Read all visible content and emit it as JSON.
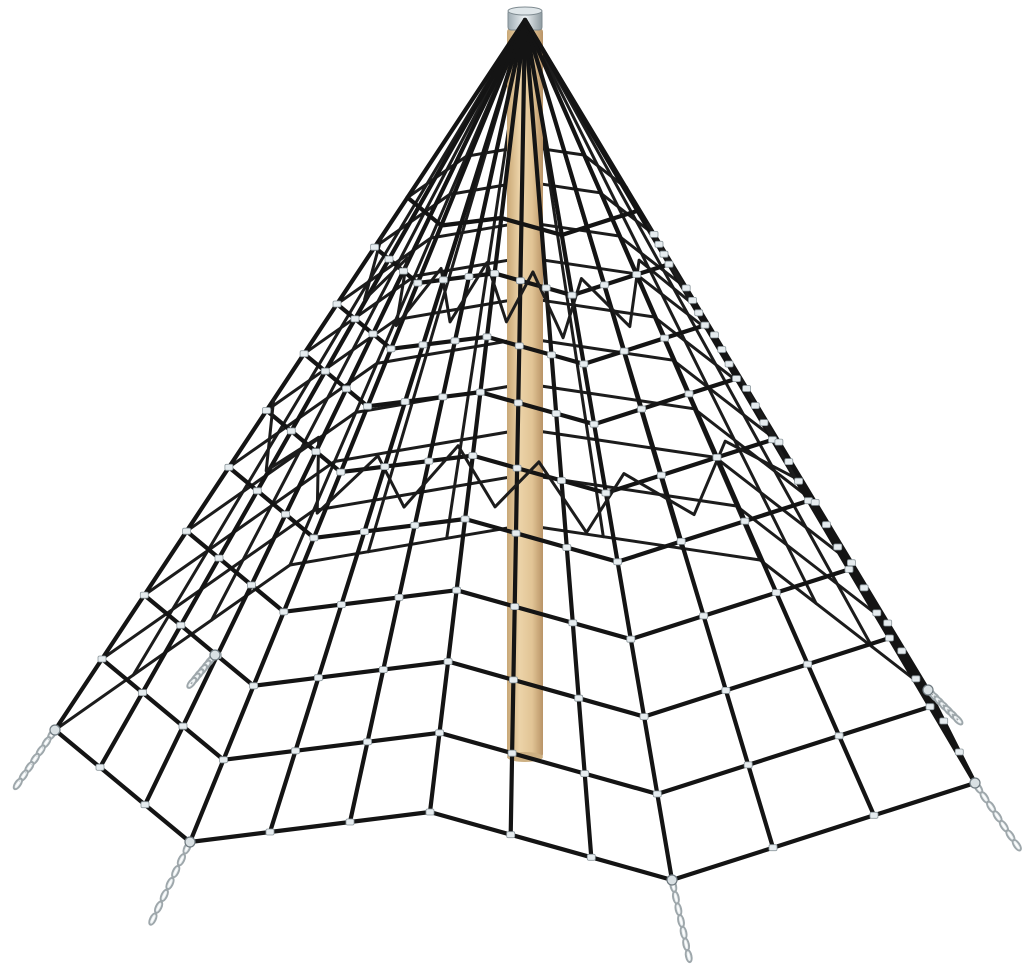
{
  "scene": {
    "subject": "rope-pyramid",
    "colors": {
      "background": "#ffffff",
      "rope": "#141414",
      "pole": "#e3c79a",
      "pole_shadow": "#c9a877",
      "cap": "#c9d3d8",
      "clamp": "#e6ecef",
      "chain": "#9ea7ab"
    },
    "perimeter_anchors": 8,
    "horizontal_rings": 9,
    "has_center_pole": true,
    "has_ground_chains": true
  }
}
